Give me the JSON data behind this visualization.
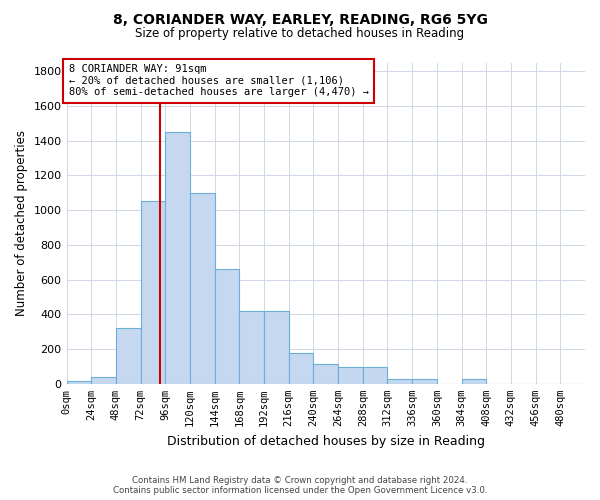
{
  "title1": "8, CORIANDER WAY, EARLEY, READING, RG6 5YG",
  "title2": "Size of property relative to detached houses in Reading",
  "xlabel": "Distribution of detached houses by size in Reading",
  "ylabel": "Number of detached properties",
  "bin_labels": [
    "0sqm",
    "24sqm",
    "48sqm",
    "72sqm",
    "96sqm",
    "120sqm",
    "144sqm",
    "168sqm",
    "192sqm",
    "216sqm",
    "240sqm",
    "264sqm",
    "288sqm",
    "312sqm",
    "336sqm",
    "360sqm",
    "384sqm",
    "408sqm",
    "432sqm",
    "456sqm",
    "480sqm"
  ],
  "bar_heights": [
    15,
    40,
    320,
    1050,
    1450,
    1100,
    660,
    420,
    420,
    175,
    115,
    95,
    95,
    25,
    25,
    0,
    25,
    0,
    0,
    0,
    0
  ],
  "bar_color": "#c5d8f0",
  "bar_edge_color": "#6baed6",
  "vline_x": 91,
  "annotation_text": "8 CORIANDER WAY: 91sqm\n← 20% of detached houses are smaller (1,106)\n80% of semi-detached houses are larger (4,470) →",
  "annotation_box_facecolor": "#ffffff",
  "annotation_box_edgecolor": "#cc0000",
  "vline_color": "#cc0000",
  "ylim_max": 1850,
  "xlim_max": 504,
  "bin_width": 24,
  "yticks": [
    0,
    200,
    400,
    600,
    800,
    1000,
    1200,
    1400,
    1600,
    1800
  ],
  "footer1": "Contains HM Land Registry data © Crown copyright and database right 2024.",
  "footer2": "Contains public sector information licensed under the Open Government Licence v3.0.",
  "fig_width": 6.0,
  "fig_height": 5.0
}
